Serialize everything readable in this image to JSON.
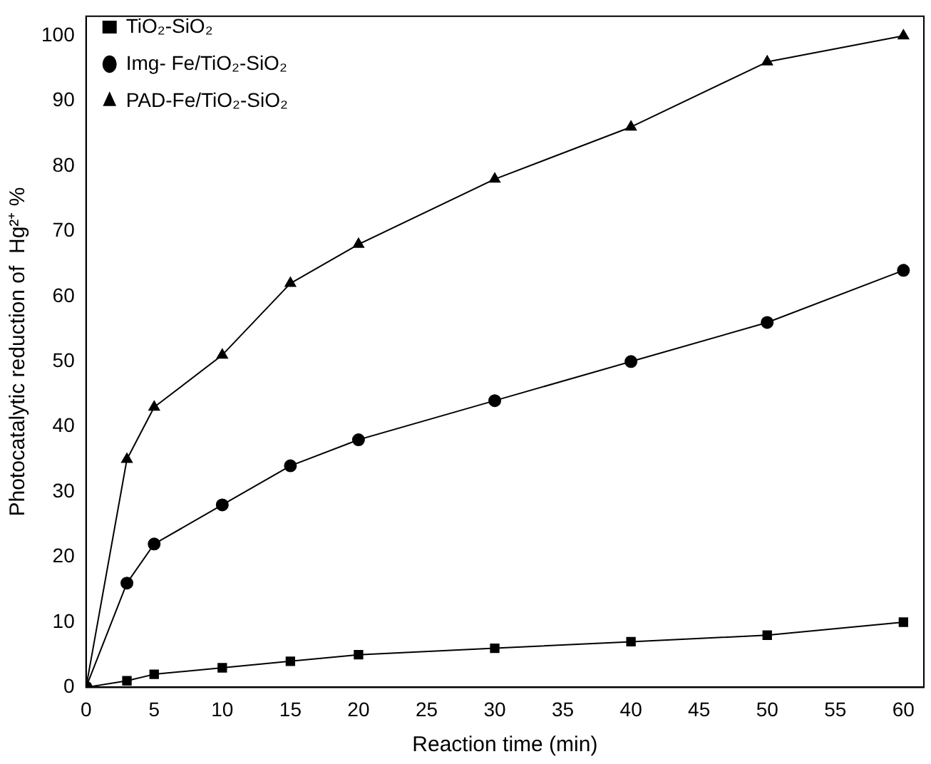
{
  "chart_data": {
    "type": "line",
    "xlabel": "Reaction time (min)",
    "ylabel": "Photocatalytic reduction of  Hg²⁺ %",
    "x": [
      0,
      3,
      5,
      10,
      15,
      20,
      30,
      40,
      50,
      60
    ],
    "series": [
      {
        "name": "TiO₂-SiO₂",
        "color": "#000000",
        "marker": "square",
        "values": [
          0,
          1,
          2,
          3,
          4,
          5,
          6,
          7,
          8,
          10
        ]
      },
      {
        "name": "Img- Fe/TiO₂-SiO₂",
        "color": "#000000",
        "marker": "circle",
        "values": [
          0,
          16,
          22,
          28,
          34,
          38,
          44,
          50,
          56,
          64
        ]
      },
      {
        "name": "PAD-Fe/TiO₂-SiO₂",
        "color": "#000000",
        "marker": "triangle",
        "values": [
          0,
          35,
          43,
          51,
          62,
          68,
          78,
          86,
          96,
          100
        ]
      }
    ],
    "xlim": [
      0,
      61.5
    ],
    "xticks": [
      0,
      5,
      10,
      15,
      20,
      25,
      30,
      35,
      40,
      45,
      50,
      55,
      60
    ],
    "ylim": [
      0,
      103
    ],
    "yticks": [
      0,
      10,
      20,
      30,
      40,
      50,
      60,
      70,
      80,
      90,
      100
    ],
    "grid": false,
    "legend": "top left",
    "line_style": "solid"
  }
}
